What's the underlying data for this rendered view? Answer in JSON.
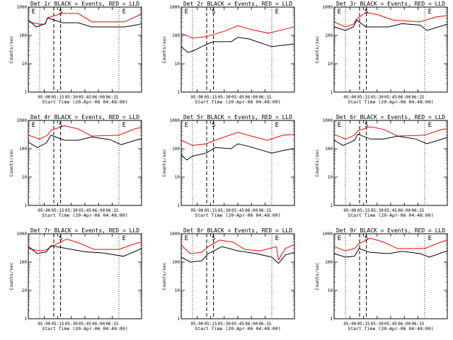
{
  "chart_data": [
    {
      "type": "line",
      "title": "Det 1r BLACK = Events, RED = LLD",
      "xlabel": "Start Time (20-Apr-06 04:48:00)",
      "ylabel": "Counts/sec",
      "yscale": "log",
      "ylim": [
        1,
        1000
      ],
      "y_ticks": [
        "1",
        "10",
        "100",
        "1000"
      ],
      "x_ticks": [
        "05:00",
        "05:15",
        "05:30",
        "05:45",
        "06:00",
        "06:15"
      ],
      "markers": [
        "E",
        "S",
        "E"
      ],
      "series": [
        {
          "color": "#ff0000",
          "points": [
            [
              0,
              300
            ],
            [
              10,
              250
            ],
            [
              15,
              250
            ],
            [
              17,
              420
            ],
            [
              30,
              600
            ],
            [
              44,
              600
            ],
            [
              56,
              300
            ],
            [
              85,
              300
            ],
            [
              97,
              500
            ],
            [
              100,
              580
            ]
          ]
        },
        {
          "color": "#000000",
          "points": [
            [
              0,
              350
            ],
            [
              7,
              200
            ],
            [
              15,
              260
            ],
            [
              17,
              420
            ],
            [
              30,
              280
            ],
            [
              44,
              280
            ],
            [
              56,
              200
            ],
            [
              85,
              200
            ],
            [
              97,
              240
            ],
            [
              100,
              260
            ]
          ]
        }
      ]
    },
    {
      "type": "line",
      "title": "Det 2r BLACK = Events, RED = LLD",
      "xlabel": "Start Time (20-Apr-06 04:48:00)",
      "ylabel": "Counts/sec",
      "yscale": "log",
      "ylim": [
        1,
        1000
      ],
      "y_ticks": [
        "1",
        "10",
        "100",
        "1000"
      ],
      "x_ticks": [
        "05:00",
        "05:15",
        "05:30",
        "05:45",
        "06:00",
        "06:15"
      ],
      "markers": [
        "E",
        "S",
        "E"
      ],
      "series": [
        {
          "color": "#ff0000",
          "points": [
            [
              0,
              120
            ],
            [
              10,
              80
            ],
            [
              22,
              90
            ],
            [
              38,
              140
            ],
            [
              50,
              220
            ],
            [
              62,
              160
            ],
            [
              77,
              120
            ],
            [
              95,
              180
            ],
            [
              100,
              200
            ]
          ]
        },
        {
          "color": "#000000",
          "points": [
            [
              0,
              40
            ],
            [
              6,
              25
            ],
            [
              12,
              30
            ],
            [
              18,
              40
            ],
            [
              28,
              60
            ],
            [
              44,
              60
            ],
            [
              50,
              85
            ],
            [
              60,
              75
            ],
            [
              80,
              40
            ],
            [
              90,
              45
            ],
            [
              100,
              50
            ]
          ]
        }
      ]
    },
    {
      "type": "line",
      "title": "Det 3r BLACK = Events, RED = LLD",
      "xlabel": "Start Time (20-Apr-06 04:48:00)",
      "ylabel": "Counts/sec",
      "yscale": "log",
      "ylim": [
        1,
        1000
      ],
      "y_ticks": [
        "1",
        "10",
        "100",
        "1000"
      ],
      "x_ticks": [
        "05:00",
        "05:15",
        "05:30",
        "05:45",
        "06:00",
        "06:15"
      ],
      "markers": [
        "E",
        "S",
        "E"
      ],
      "series": [
        {
          "color": "#ff0000",
          "points": [
            [
              0,
              300
            ],
            [
              10,
              200
            ],
            [
              17,
              250
            ],
            [
              20,
              380
            ],
            [
              28,
              650
            ],
            [
              38,
              550
            ],
            [
              52,
              350
            ],
            [
              76,
              300
            ],
            [
              90,
              450
            ],
            [
              100,
              500
            ]
          ]
        },
        {
          "color": "#000000",
          "points": [
            [
              0,
              200
            ],
            [
              10,
              150
            ],
            [
              17,
              200
            ],
            [
              20,
              350
            ],
            [
              28,
              200
            ],
            [
              48,
              200
            ],
            [
              60,
              260
            ],
            [
              76,
              230
            ],
            [
              82,
              150
            ],
            [
              100,
              250
            ]
          ]
        }
      ]
    },
    {
      "type": "line",
      "title": "Det 4r BLACK = Events, RED = LLD",
      "xlabel": "Start Time (20-Apr-06 04:48:00)",
      "ylabel": "Counts/sec",
      "yscale": "log",
      "ylim": [
        1,
        1000
      ],
      "y_ticks": [
        "1",
        "10",
        "100",
        "1000"
      ],
      "x_ticks": [
        "05:00",
        "05:15",
        "05:30",
        "05:45",
        "06:00",
        "06:15"
      ],
      "markers": [
        "E",
        "S",
        "E"
      ],
      "series": [
        {
          "color": "#ff0000",
          "points": [
            [
              0,
              300
            ],
            [
              10,
              220
            ],
            [
              17,
              300
            ],
            [
              20,
              450
            ],
            [
              32,
              650
            ],
            [
              44,
              500
            ],
            [
              56,
              280
            ],
            [
              80,
              300
            ],
            [
              95,
              520
            ],
            [
              100,
              560
            ]
          ]
        },
        {
          "color": "#000000",
          "points": [
            [
              0,
              170
            ],
            [
              8,
              110
            ],
            [
              16,
              160
            ],
            [
              20,
              300
            ],
            [
              32,
              200
            ],
            [
              44,
              200
            ],
            [
              56,
              260
            ],
            [
              72,
              210
            ],
            [
              82,
              140
            ],
            [
              100,
              230
            ]
          ]
        }
      ]
    },
    {
      "type": "line",
      "title": "Det 5r BLACK = Events, RED = LLD",
      "xlabel": "Start Time (20-Apr-06 04:48:00)",
      "ylabel": "Counts/sec",
      "yscale": "log",
      "ylim": [
        1,
        1000
      ],
      "y_ticks": [
        "1",
        "10",
        "100",
        "1000"
      ],
      "x_ticks": [
        "05:00",
        "05:15",
        "05:30",
        "05:45",
        "06:00",
        "06:15"
      ],
      "markers": [
        "E",
        "S",
        "E"
      ],
      "series": [
        {
          "color": "#ff0000",
          "points": [
            [
              0,
              200
            ],
            [
              10,
              130
            ],
            [
              22,
              150
            ],
            [
              30,
              200
            ],
            [
              50,
              380
            ],
            [
              62,
              280
            ],
            [
              76,
              200
            ],
            [
              90,
              300
            ],
            [
              100,
              320
            ]
          ]
        },
        {
          "color": "#000000",
          "points": [
            [
              0,
              60
            ],
            [
              5,
              40
            ],
            [
              10,
              55
            ],
            [
              22,
              70
            ],
            [
              30,
              110
            ],
            [
              44,
              100
            ],
            [
              50,
              150
            ],
            [
              60,
              120
            ],
            [
              80,
              70
            ],
            [
              92,
              90
            ],
            [
              100,
              100
            ]
          ]
        }
      ]
    },
    {
      "type": "line",
      "title": "Det 6r BLACK = Events, RED = LLD",
      "xlabel": "Start Time (20-Apr-06 04:48:00)",
      "ylabel": "Counts/sec",
      "yscale": "log",
      "ylim": [
        1,
        1000
      ],
      "y_ticks": [
        "1",
        "10",
        "100",
        "1000"
      ],
      "x_ticks": [
        "05:00",
        "05:15",
        "05:30",
        "05:45",
        "06:00",
        "06:15"
      ],
      "markers": [
        "E",
        "S",
        "E"
      ],
      "series": [
        {
          "color": "#ff0000",
          "points": [
            [
              0,
              320
            ],
            [
              10,
              220
            ],
            [
              18,
              300
            ],
            [
              21,
              430
            ],
            [
              32,
              600
            ],
            [
              44,
              480
            ],
            [
              56,
              280
            ],
            [
              80,
              300
            ],
            [
              95,
              480
            ],
            [
              100,
              500
            ]
          ]
        },
        {
          "color": "#000000",
          "points": [
            [
              0,
              200
            ],
            [
              8,
              130
            ],
            [
              18,
              200
            ],
            [
              21,
              330
            ],
            [
              32,
              220
            ],
            [
              44,
              220
            ],
            [
              56,
              280
            ],
            [
              72,
              220
            ],
            [
              82,
              150
            ],
            [
              100,
              250
            ]
          ]
        }
      ]
    },
    {
      "type": "line",
      "title": "Det 7r BLACK = Events, RED = LLD",
      "xlabel": "Start Time (20-Apr-06 04:48:00)",
      "ylabel": "Counts/sec",
      "yscale": "log",
      "ylim": [
        1,
        1000
      ],
      "y_ticks": [
        "1",
        "10",
        "100",
        "1000"
      ],
      "x_ticks": [
        "05:00",
        "05:15",
        "05:30",
        "05:45",
        "06:00",
        "06:15"
      ],
      "markers": [
        "S",
        "E"
      ],
      "series": [
        {
          "color": "#ff0000",
          "points": [
            [
              0,
              300
            ],
            [
              10,
              250
            ],
            [
              16,
              270
            ],
            [
              20,
              350
            ],
            [
              34,
              650
            ],
            [
              46,
              450
            ],
            [
              58,
              280
            ],
            [
              80,
              280
            ],
            [
              92,
              420
            ],
            [
              100,
              520
            ]
          ]
        },
        {
          "color": "#000000",
          "points": [
            [
              0,
              350
            ],
            [
              8,
              200
            ],
            [
              16,
              230
            ],
            [
              20,
              380
            ],
            [
              34,
              300
            ],
            [
              50,
              230
            ],
            [
              66,
              210
            ],
            [
              84,
              160
            ],
            [
              100,
              300
            ]
          ]
        }
      ]
    },
    {
      "type": "line",
      "title": "Det 8r BLACK = Events, RED = LLD",
      "xlabel": "Start Time (20-Apr-06 04:48:00)",
      "ylabel": "Counts/sec",
      "yscale": "log",
      "ylim": [
        1,
        1000
      ],
      "y_ticks": [
        "1",
        "10",
        "100",
        "1000"
      ],
      "x_ticks": [
        "05:00",
        "05:15",
        "05:30",
        "05:45",
        "06:00",
        "06:15"
      ],
      "markers": [
        "E",
        "S",
        "E"
      ],
      "series": [
        {
          "color": "#ff0000",
          "points": [
            [
              0,
              400
            ],
            [
              8,
              200
            ],
            [
              18,
              220
            ],
            [
              24,
              350
            ],
            [
              34,
              600
            ],
            [
              46,
              500
            ],
            [
              56,
              280
            ],
            [
              70,
              250
            ],
            [
              84,
              350
            ],
            [
              86,
              120
            ],
            [
              92,
              300
            ],
            [
              100,
              420
            ]
          ]
        },
        {
          "color": "#000000",
          "points": [
            [
              0,
              150
            ],
            [
              8,
              100
            ],
            [
              18,
              110
            ],
            [
              24,
              200
            ],
            [
              36,
              350
            ],
            [
              50,
              250
            ],
            [
              66,
              200
            ],
            [
              80,
              150
            ],
            [
              86,
              90
            ],
            [
              92,
              180
            ],
            [
              100,
              220
            ]
          ]
        }
      ]
    },
    {
      "type": "line",
      "title": "Det 9r BLACK = Events, RED = LLD",
      "xlabel": "Start Time (20-Apr-06 04:48:00)",
      "ylabel": "Counts/sec",
      "yscale": "log",
      "ylim": [
        1,
        1000
      ],
      "y_ticks": [
        "1",
        "10",
        "100",
        "1000"
      ],
      "x_ticks": [
        "05:00",
        "05:15",
        "05:30",
        "05:45",
        "06:00",
        "06:15"
      ],
      "markers": [
        "E",
        "S",
        "E"
      ],
      "series": [
        {
          "color": "#ff0000",
          "points": [
            [
              0,
              350
            ],
            [
              10,
              250
            ],
            [
              18,
              300
            ],
            [
              22,
              450
            ],
            [
              32,
              700
            ],
            [
              44,
              500
            ],
            [
              56,
              300
            ],
            [
              80,
              300
            ],
            [
              95,
              520
            ],
            [
              100,
              600
            ]
          ]
        },
        {
          "color": "#000000",
          "points": [
            [
              0,
              200
            ],
            [
              10,
              150
            ],
            [
              18,
              160
            ],
            [
              22,
              300
            ],
            [
              32,
              220
            ],
            [
              48,
              200
            ],
            [
              60,
              240
            ],
            [
              76,
              200
            ],
            [
              84,
              150
            ],
            [
              100,
              250
            ]
          ]
        }
      ]
    }
  ]
}
